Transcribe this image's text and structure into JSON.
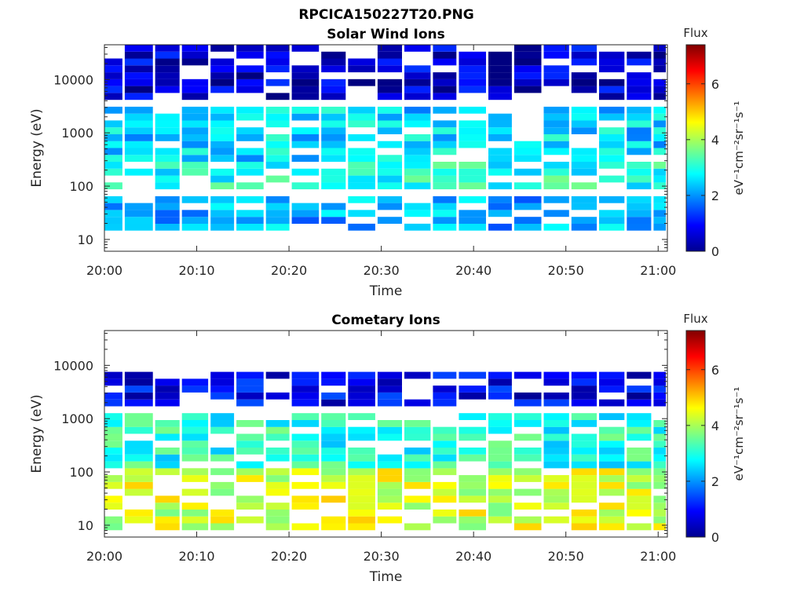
{
  "figure": {
    "title": "RPCICA150227T20.PNG"
  },
  "chart_data": [
    {
      "type": "heatmap",
      "title": "Solar Wind Ions",
      "xlabel": "Time",
      "ylabel": "Energy (eV)",
      "yscale": "log",
      "ylim": [
        6,
        45000
      ],
      "x_ticks": [
        "20:00",
        "20:10",
        "20:20",
        "20:30",
        "20:40",
        "20:50",
        "21:00"
      ],
      "y_ticks": [
        "10",
        "100",
        "1000",
        "10000"
      ],
      "y_tick_values": [
        10,
        100,
        1000,
        10000
      ],
      "xlim_minutes": [
        0,
        61
      ],
      "time_columns_minutes": [
        0,
        2.2,
        5.5,
        8.4,
        11.5,
        14.3,
        17.5,
        20.3,
        23.5,
        26.4,
        29.6,
        32.5,
        35.6,
        38.4,
        41.6,
        44.4,
        47.6,
        50.6,
        53.6,
        56.6,
        59.5
      ],
      "colorbar": {
        "label": "eV⁻¹cm⁻²sr⁻¹s⁻¹",
        "header": "Flux",
        "range": [
          0,
          7.4
        ],
        "ticks": [
          "0",
          "2",
          "4",
          "6"
        ]
      },
      "dominant_flux_bands": [
        {
          "energy_range_eV": [
            250,
            3500
          ],
          "flux": 2.5
        },
        {
          "energy_range_eV": [
            80,
            300
          ],
          "flux": 3.0
        },
        {
          "energy_range_eV": [
            15,
            60
          ],
          "flux": 2.2
        },
        {
          "energy_range_eV": [
            4000,
            45000
          ],
          "flux": 0.6
        }
      ],
      "grid": false
    },
    {
      "type": "heatmap",
      "title": "Cometary Ions",
      "xlabel": "Time",
      "ylabel": "Energy (eV)",
      "yscale": "log",
      "ylim": [
        6,
        45000
      ],
      "x_ticks": [
        "20:00",
        "20:10",
        "20:20",
        "20:30",
        "20:40",
        "20:50",
        "21:00"
      ],
      "y_ticks": [
        "10",
        "100",
        "1000",
        "10000"
      ],
      "y_tick_values": [
        10,
        100,
        1000,
        10000
      ],
      "xlim_minutes": [
        0,
        61
      ],
      "time_columns_minutes": [
        0,
        2.2,
        5.5,
        8.4,
        11.5,
        14.3,
        17.5,
        20.3,
        23.5,
        26.4,
        29.6,
        32.5,
        35.6,
        38.4,
        41.6,
        44.4,
        47.6,
        50.6,
        53.6,
        56.6,
        59.5
      ],
      "colorbar": {
        "label": "eV⁻¹cm⁻²sr⁻¹s⁻¹",
        "header": "Flux",
        "range": [
          0,
          7.4
        ],
        "ticks": [
          "0",
          "2",
          "4",
          "6"
        ]
      },
      "dominant_flux_bands": [
        {
          "energy_range_eV": [
            8,
            120
          ],
          "flux": 4.3
        },
        {
          "energy_range_eV": [
            120,
            1200
          ],
          "flux": 3.0
        },
        {
          "energy_range_eV": [
            1500,
            8000
          ],
          "flux": 0.8
        }
      ],
      "grid": false
    }
  ]
}
